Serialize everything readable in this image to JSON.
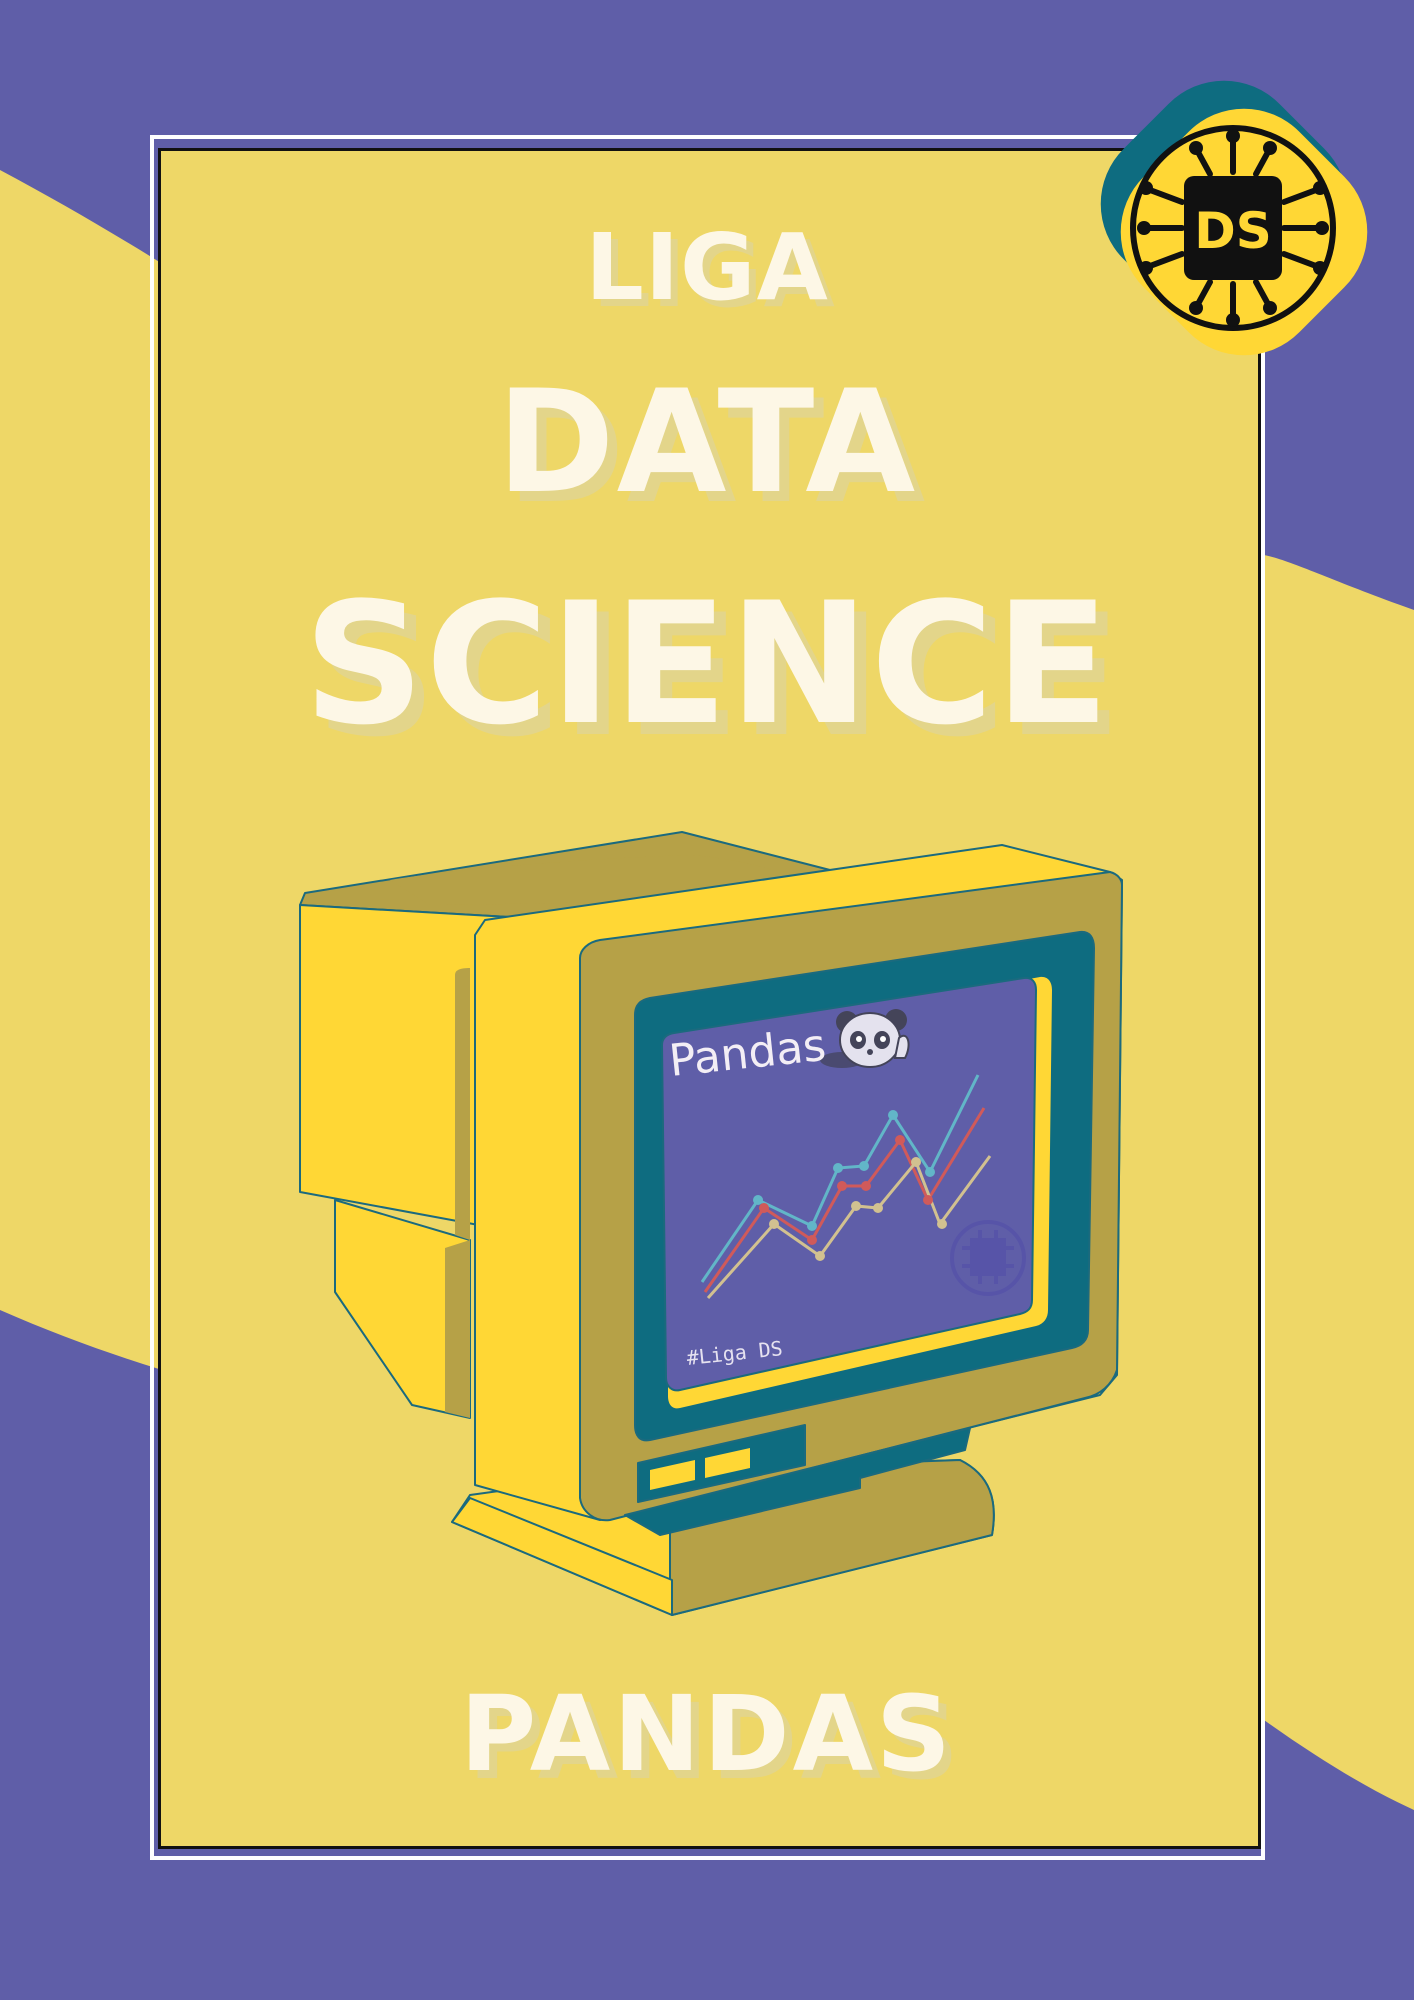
{
  "colors": {
    "background_purple": "#5F5EA8",
    "poster_yellow": "#EED767",
    "title_cream": "#FDF7E6",
    "monitor_yellow": "#FFD735",
    "monitor_olive": "#B6A147",
    "screen_teal": "#0E6C80",
    "screen_purple": "#5F5EA8"
  },
  "title": {
    "line1": "LIGA",
    "line2": "DATA",
    "line3": "SCIENCE"
  },
  "subtitle": "PANDAS",
  "screen": {
    "title": "Pandas",
    "tag": "#Liga DS"
  },
  "badge": {
    "text": "DS"
  },
  "icons": [
    "panda-icon",
    "circuit-chip-icon"
  ]
}
